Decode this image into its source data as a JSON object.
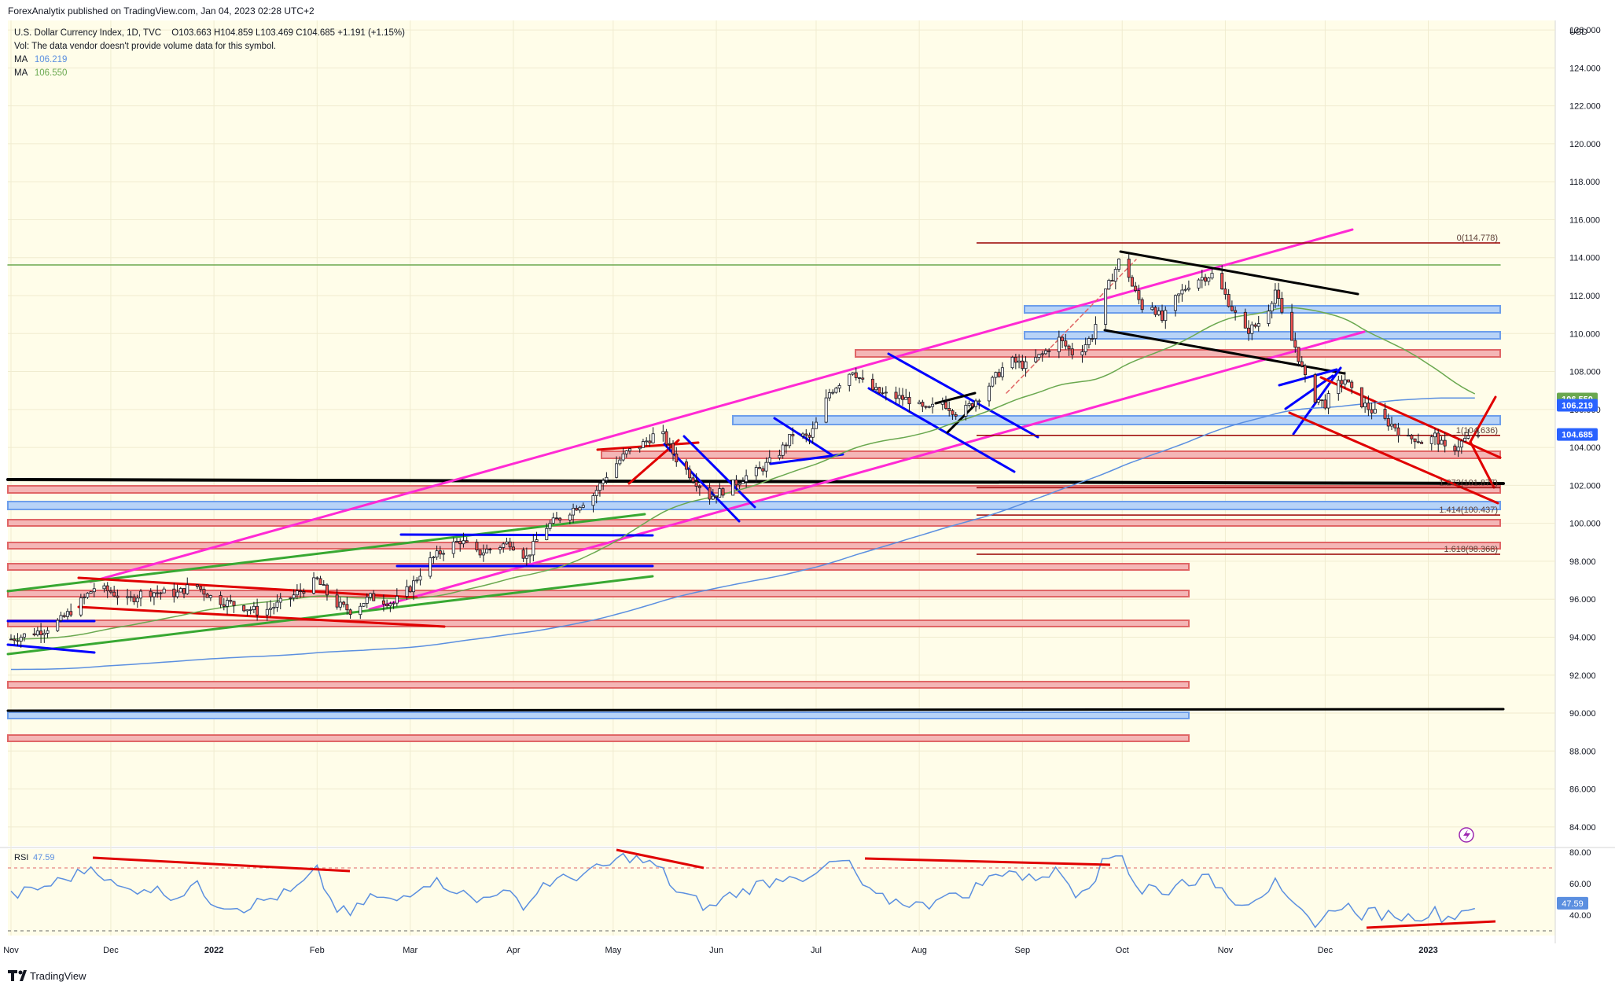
{
  "header": {
    "published": "ForexAnalytix published on TradingView.com, Jan 04, 2023 02:28 UTC+2",
    "symbol_line": "U.S. Dollar Currency Index, 1D, TVC",
    "ohlc": "O103.663  H104.859  L103.469  C104.685  +1.191 (+1.15%)",
    "vol_line": "Vol: The data vendor doesn't provide volume data for this symbol.",
    "ma1_label": "MA",
    "ma1_value": "106.219",
    "ma2_label": "MA",
    "ma2_value": "106.550"
  },
  "footer": {
    "brand": "TradingView"
  },
  "colors": {
    "ma_fast": "#5b8fe0",
    "ma_slow": "#6aa84f",
    "up": "#ffffff",
    "down": "#ef5350",
    "wick": "#131722",
    "bg_plot": "#fffde9",
    "magenta": "#ff2ad4",
    "zone_red": "#f08080",
    "zone_blue": "#9fc5f8"
  },
  "chart_data": {
    "type": "line",
    "currency": "USD",
    "ylim": [
      83,
      126.5
    ],
    "y_ticks": [
      "126.000",
      "124.000",
      "122.000",
      "120.000",
      "118.000",
      "116.000",
      "114.000",
      "112.000",
      "110.000",
      "108.000",
      "106.000",
      "104.000",
      "102.000",
      "100.000",
      "98.000",
      "96.000",
      "94.000",
      "92.000",
      "90.000",
      "88.000",
      "86.000",
      "84.000"
    ],
    "y_tick_values": [
      126,
      124,
      122,
      120,
      118,
      116,
      114,
      112,
      110,
      108,
      106,
      104,
      102,
      100,
      98,
      96,
      94,
      92,
      90,
      88,
      86,
      84
    ],
    "x_labels": [
      "Nov",
      "Dec",
      "2022",
      "Feb",
      "Mar",
      "Apr",
      "May",
      "Jun",
      "Jul",
      "Aug",
      "Sep",
      "Oct",
      "Nov",
      "Dec",
      "2023"
    ],
    "x_label_days": [
      0,
      30,
      61,
      92,
      120,
      151,
      181,
      212,
      242,
      273,
      304,
      334,
      365,
      395,
      426
    ],
    "x_range_days": [
      0,
      441
    ],
    "price_path": [
      [
        0,
        93.9
      ],
      [
        10,
        94.4
      ],
      [
        15,
        94.9
      ],
      [
        20,
        95.7
      ],
      [
        25,
        96.6
      ],
      [
        30,
        96.4
      ],
      [
        35,
        95.9
      ],
      [
        40,
        96.4
      ],
      [
        50,
        96.3
      ],
      [
        55,
        96.8
      ],
      [
        61,
        96.0
      ],
      [
        70,
        95.6
      ],
      [
        75,
        95.3
      ],
      [
        80,
        95.7
      ],
      [
        85,
        96.2
      ],
      [
        92,
        97.0
      ],
      [
        97,
        95.8
      ],
      [
        102,
        95.4
      ],
      [
        108,
        96.1
      ],
      [
        115,
        95.8
      ],
      [
        120,
        96.6
      ],
      [
        125,
        97.9
      ],
      [
        130,
        98.6
      ],
      [
        135,
        99.1
      ],
      [
        140,
        98.4
      ],
      [
        145,
        98.7
      ],
      [
        150,
        99.0
      ],
      [
        155,
        98.2
      ],
      [
        160,
        99.7
      ],
      [
        165,
        100.3
      ],
      [
        170,
        100.9
      ],
      [
        175,
        101.5
      ],
      [
        180,
        102.8
      ],
      [
        185,
        103.7
      ],
      [
        190,
        104.2
      ],
      [
        195,
        104.9
      ],
      [
        200,
        103.4
      ],
      [
        205,
        102.4
      ],
      [
        210,
        101.4
      ],
      [
        215,
        101.8
      ],
      [
        220,
        102.4
      ],
      [
        225,
        102.8
      ],
      [
        230,
        103.5
      ],
      [
        235,
        104.7
      ],
      [
        240,
        104.5
      ],
      [
        243,
        105.6
      ],
      [
        246,
        106.9
      ],
      [
        250,
        107.6
      ],
      [
        253,
        108.1
      ],
      [
        257,
        107.2
      ],
      [
        262,
        106.8
      ],
      [
        270,
        106.5
      ],
      [
        275,
        105.9
      ],
      [
        280,
        106.4
      ],
      [
        285,
        105.7
      ],
      [
        290,
        106.5
      ],
      [
        295,
        107.5
      ],
      [
        300,
        108.6
      ],
      [
        305,
        108.3
      ],
      [
        310,
        108.9
      ],
      [
        315,
        109.7
      ],
      [
        320,
        108.8
      ],
      [
        325,
        109.9
      ],
      [
        328,
        111.7
      ],
      [
        331,
        113.0
      ],
      [
        334,
        114.2
      ],
      [
        337,
        112.5
      ],
      [
        340,
        111.4
      ],
      [
        343,
        111.5
      ],
      [
        346,
        110.7
      ],
      [
        350,
        111.8
      ],
      [
        354,
        112.6
      ],
      [
        357,
        112.9
      ],
      [
        361,
        113.1
      ],
      [
        365,
        112.0
      ],
      [
        368,
        111.0
      ],
      [
        371,
        110.1
      ],
      [
        374,
        110.4
      ],
      [
        377,
        110.9
      ],
      [
        380,
        112.3
      ],
      [
        383,
        110.3
      ],
      [
        386,
        109.3
      ],
      [
        389,
        107.6
      ],
      [
        392,
        106.6
      ],
      [
        395,
        106.3
      ],
      [
        398,
        107.2
      ],
      [
        401,
        107.6
      ],
      [
        404,
        106.6
      ],
      [
        407,
        106.2
      ],
      [
        410,
        105.8
      ],
      [
        413,
        105.4
      ],
      [
        416,
        105.1
      ],
      [
        419,
        104.4
      ],
      [
        422,
        104.5
      ],
      [
        425,
        104.2
      ],
      [
        428,
        104.6
      ],
      [
        431,
        103.9
      ],
      [
        434,
        104.0
      ],
      [
        437,
        104.4
      ],
      [
        441,
        104.685
      ]
    ],
    "levels": [
      {
        "label": "0(114.778)",
        "value": 114.778
      },
      {
        "label": "1(104.636)",
        "value": 104.636
      },
      {
        "label": "1.272(101.877)",
        "value": 101.877
      },
      {
        "label": "1.414(100.437)",
        "value": 100.437
      },
      {
        "label": "1.618(98.368)",
        "value": 98.368
      }
    ],
    "price_tags": [
      {
        "label": "106.550",
        "value": 106.55,
        "color": "#6aa84f"
      },
      {
        "label": "106.219",
        "value": 106.219,
        "color": "#2962ff"
      },
      {
        "label": "104.685",
        "value": 104.685,
        "color": "#2962ff"
      }
    ],
    "rsi": {
      "label": "RSI",
      "value": "47.59",
      "ylim": [
        27,
        82
      ],
      "y_ticks": [
        "80.00",
        "60.00",
        "40.00"
      ],
      "y_tick_values": [
        80,
        60,
        40
      ],
      "overbought": 70,
      "oversold": 30,
      "path": [
        [
          0,
          52
        ],
        [
          10,
          58
        ],
        [
          20,
          66
        ],
        [
          25,
          72
        ],
        [
          30,
          60
        ],
        [
          35,
          55
        ],
        [
          40,
          58
        ],
        [
          50,
          52
        ],
        [
          55,
          60
        ],
        [
          61,
          48
        ],
        [
          70,
          45
        ],
        [
          80,
          52
        ],
        [
          85,
          55
        ],
        [
          92,
          68
        ],
        [
          97,
          45
        ],
        [
          102,
          40
        ],
        [
          108,
          52
        ],
        [
          115,
          48
        ],
        [
          120,
          55
        ],
        [
          125,
          62
        ],
        [
          130,
          60
        ],
        [
          135,
          55
        ],
        [
          140,
          48
        ],
        [
          145,
          56
        ],
        [
          150,
          52
        ],
        [
          155,
          46
        ],
        [
          160,
          60
        ],
        [
          165,
          62
        ],
        [
          170,
          65
        ],
        [
          175,
          68
        ],
        [
          180,
          72
        ],
        [
          185,
          78
        ],
        [
          190,
          74
        ],
        [
          195,
          70
        ],
        [
          200,
          55
        ],
        [
          205,
          50
        ],
        [
          210,
          44
        ],
        [
          215,
          52
        ],
        [
          220,
          55
        ],
        [
          225,
          60
        ],
        [
          230,
          62
        ],
        [
          235,
          68
        ],
        [
          240,
          60
        ],
        [
          243,
          68
        ],
        [
          246,
          72
        ],
        [
          250,
          74
        ],
        [
          253,
          70
        ],
        [
          257,
          55
        ],
        [
          262,
          50
        ],
        [
          270,
          48
        ],
        [
          275,
          45
        ],
        [
          280,
          55
        ],
        [
          285,
          50
        ],
        [
          290,
          58
        ],
        [
          295,
          64
        ],
        [
          300,
          70
        ],
        [
          305,
          62
        ],
        [
          310,
          66
        ],
        [
          315,
          68
        ],
        [
          320,
          55
        ],
        [
          325,
          62
        ],
        [
          328,
          72
        ],
        [
          331,
          78
        ],
        [
          334,
          80
        ],
        [
          337,
          62
        ],
        [
          340,
          55
        ],
        [
          343,
          60
        ],
        [
          346,
          52
        ],
        [
          350,
          60
        ],
        [
          354,
          62
        ],
        [
          357,
          63
        ],
        [
          361,
          62
        ],
        [
          365,
          55
        ],
        [
          368,
          50
        ],
        [
          371,
          48
        ],
        [
          374,
          52
        ],
        [
          377,
          55
        ],
        [
          380,
          60
        ],
        [
          383,
          48
        ],
        [
          386,
          45
        ],
        [
          389,
          38
        ],
        [
          392,
          36
        ],
        [
          395,
          38
        ],
        [
          398,
          45
        ],
        [
          401,
          48
        ],
        [
          404,
          40
        ],
        [
          407,
          40
        ],
        [
          410,
          42
        ],
        [
          413,
          40
        ],
        [
          416,
          41
        ],
        [
          419,
          38
        ],
        [
          422,
          40
        ],
        [
          425,
          40
        ],
        [
          428,
          42
        ],
        [
          431,
          38
        ],
        [
          434,
          40
        ],
        [
          437,
          44
        ],
        [
          441,
          47.59
        ]
      ]
    },
    "grid": true,
    "legend": "top-left"
  }
}
